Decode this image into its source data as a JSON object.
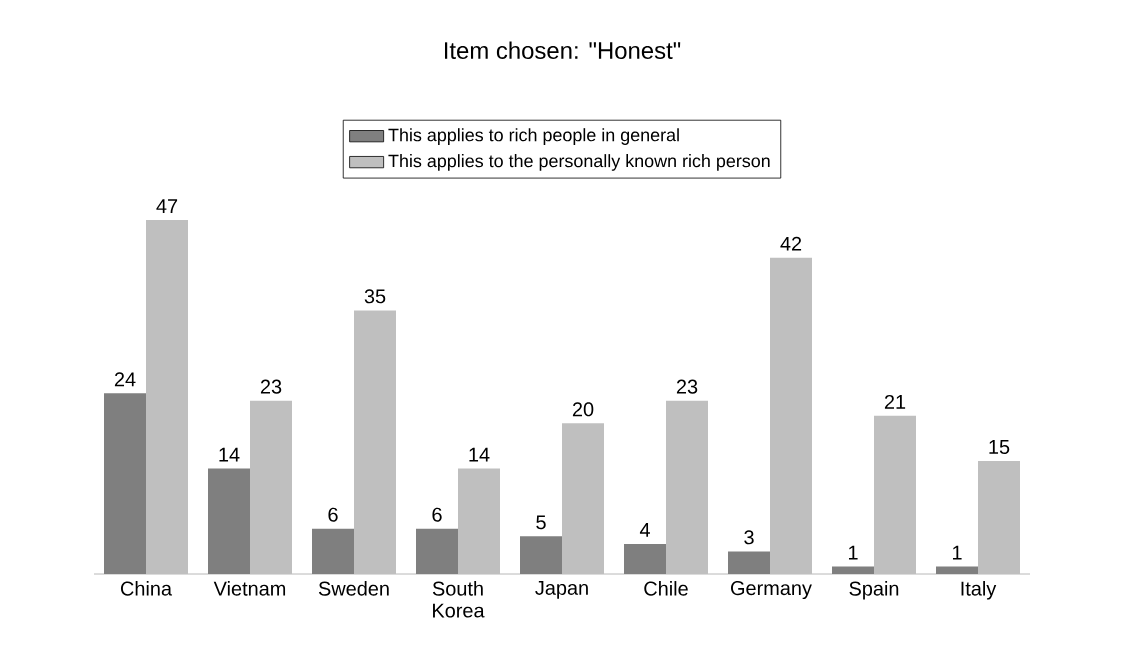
{
  "chart_data": {
    "type": "bar",
    "title": "Item chosen: \"Honest\"",
    "categories": [
      "China",
      "Vietnam",
      "Sweden",
      "South Korea",
      "Japan",
      "Chile",
      "Germany",
      "Spain",
      "Italy"
    ],
    "series": [
      {
        "name": "This applies to rich people in general",
        "color": "#7f7f7f",
        "values": [
          24,
          14,
          6,
          6,
          5,
          4,
          3,
          1,
          1
        ]
      },
      {
        "name": "This applies to the personally known rich person",
        "color": "#bfbfbf",
        "values": [
          47,
          23,
          35,
          14,
          20,
          23,
          42,
          21,
          15
        ]
      }
    ],
    "data_labels": true,
    "legend": "top"
  }
}
